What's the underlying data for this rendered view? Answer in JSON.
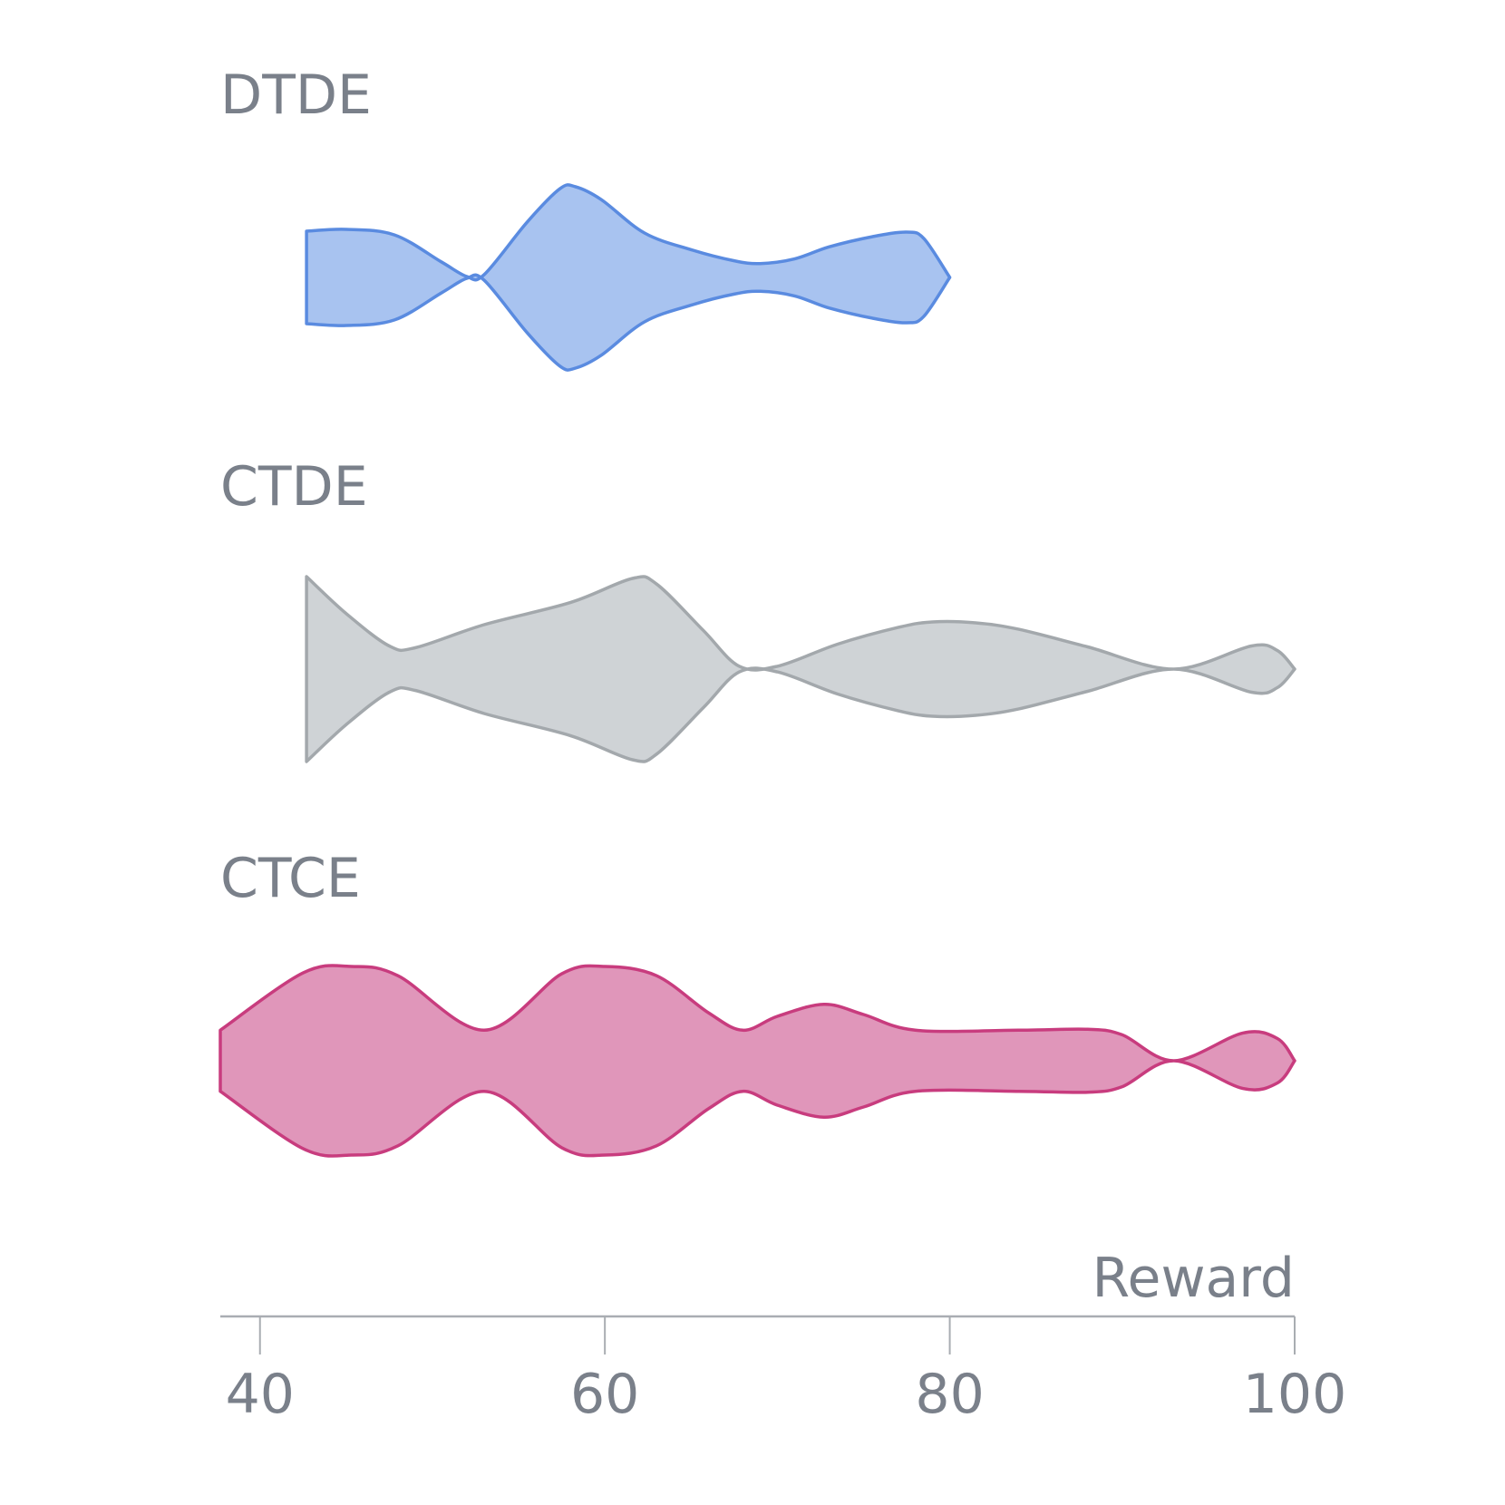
{
  "chart_data": {
    "type": "violin",
    "xlabel": "Reward",
    "xlim": [
      37.7,
      100
    ],
    "x_ticks": [
      40,
      60,
      80,
      100
    ],
    "x_tick_labels": [
      "40",
      "60",
      "80",
      "100"
    ],
    "groups": [
      {
        "name": "DTDE",
        "fill": "#a8c3f0",
        "stroke": "#5a8be0",
        "range": [
          42.7,
          80
        ],
        "density_profile": [
          {
            "x": 42.7,
            "w": 0.5
          },
          {
            "x": 45.0,
            "w": 0.52
          },
          {
            "x": 47.8,
            "w": 0.46
          },
          {
            "x": 50.5,
            "w": 0.17
          },
          {
            "x": 52.0,
            "w": 0.01
          },
          {
            "x": 53.0,
            "w": 0.03
          },
          {
            "x": 55.5,
            "w": 0.6
          },
          {
            "x": 57.4,
            "w": 0.96
          },
          {
            "x": 58.3,
            "w": 0.98
          },
          {
            "x": 59.8,
            "w": 0.84
          },
          {
            "x": 62.3,
            "w": 0.48
          },
          {
            "x": 65.0,
            "w": 0.3
          },
          {
            "x": 67.5,
            "w": 0.18
          },
          {
            "x": 69.0,
            "w": 0.15
          },
          {
            "x": 71.0,
            "w": 0.2
          },
          {
            "x": 73.0,
            "w": 0.33
          },
          {
            "x": 75.5,
            "w": 0.44
          },
          {
            "x": 77.5,
            "w": 0.49
          },
          {
            "x": 78.5,
            "w": 0.42
          },
          {
            "x": 80.0,
            "w": 0.0
          }
        ]
      },
      {
        "name": "CTDE",
        "fill": "#cfd3d6",
        "stroke": "#a3a8ac",
        "range": [
          42.7,
          100
        ],
        "density_profile": [
          {
            "x": 42.7,
            "w": 1.0
          },
          {
            "x": 45.0,
            "w": 0.6
          },
          {
            "x": 47.5,
            "w": 0.25
          },
          {
            "x": 49.0,
            "w": 0.23
          },
          {
            "x": 53.0,
            "w": 0.48
          },
          {
            "x": 58.0,
            "w": 0.72
          },
          {
            "x": 61.6,
            "w": 0.98
          },
          {
            "x": 63.0,
            "w": 0.92
          },
          {
            "x": 65.7,
            "w": 0.42
          },
          {
            "x": 67.8,
            "w": 0.03
          },
          {
            "x": 70.0,
            "w": 0.03
          },
          {
            "x": 73.5,
            "w": 0.27
          },
          {
            "x": 77.0,
            "w": 0.45
          },
          {
            "x": 79.0,
            "w": 0.51
          },
          {
            "x": 81.5,
            "w": 0.5
          },
          {
            "x": 84.0,
            "w": 0.43
          },
          {
            "x": 88.0,
            "w": 0.24
          },
          {
            "x": 93.0,
            "w": 0.0
          },
          {
            "x": 97.5,
            "w": 0.25
          },
          {
            "x": 99.0,
            "w": 0.2
          },
          {
            "x": 100.0,
            "w": 0.0
          }
        ]
      },
      {
        "name": "CTCE",
        "fill": "#e096ba",
        "stroke": "#c83c7e",
        "range": [
          37.7,
          100
        ],
        "density_profile": [
          {
            "x": 37.7,
            "w": 0.33
          },
          {
            "x": 42.5,
            "w": 0.95
          },
          {
            "x": 45.3,
            "w": 1.02
          },
          {
            "x": 48.0,
            "w": 0.92
          },
          {
            "x": 53.0,
            "w": 0.33
          },
          {
            "x": 57.5,
            "w": 0.94
          },
          {
            "x": 60.0,
            "w": 1.02
          },
          {
            "x": 63.0,
            "w": 0.92
          },
          {
            "x": 66.0,
            "w": 0.52
          },
          {
            "x": 68.0,
            "w": 0.33
          },
          {
            "x": 70.0,
            "w": 0.48
          },
          {
            "x": 72.7,
            "w": 0.61
          },
          {
            "x": 75.0,
            "w": 0.5
          },
          {
            "x": 78.0,
            "w": 0.33
          },
          {
            "x": 84.0,
            "w": 0.33
          },
          {
            "x": 88.0,
            "w": 0.34
          },
          {
            "x": 90.0,
            "w": 0.28
          },
          {
            "x": 93.0,
            "w": 0.0
          },
          {
            "x": 97.0,
            "w": 0.3
          },
          {
            "x": 99.0,
            "w": 0.24
          },
          {
            "x": 100.0,
            "w": 0.0
          }
        ]
      }
    ]
  }
}
